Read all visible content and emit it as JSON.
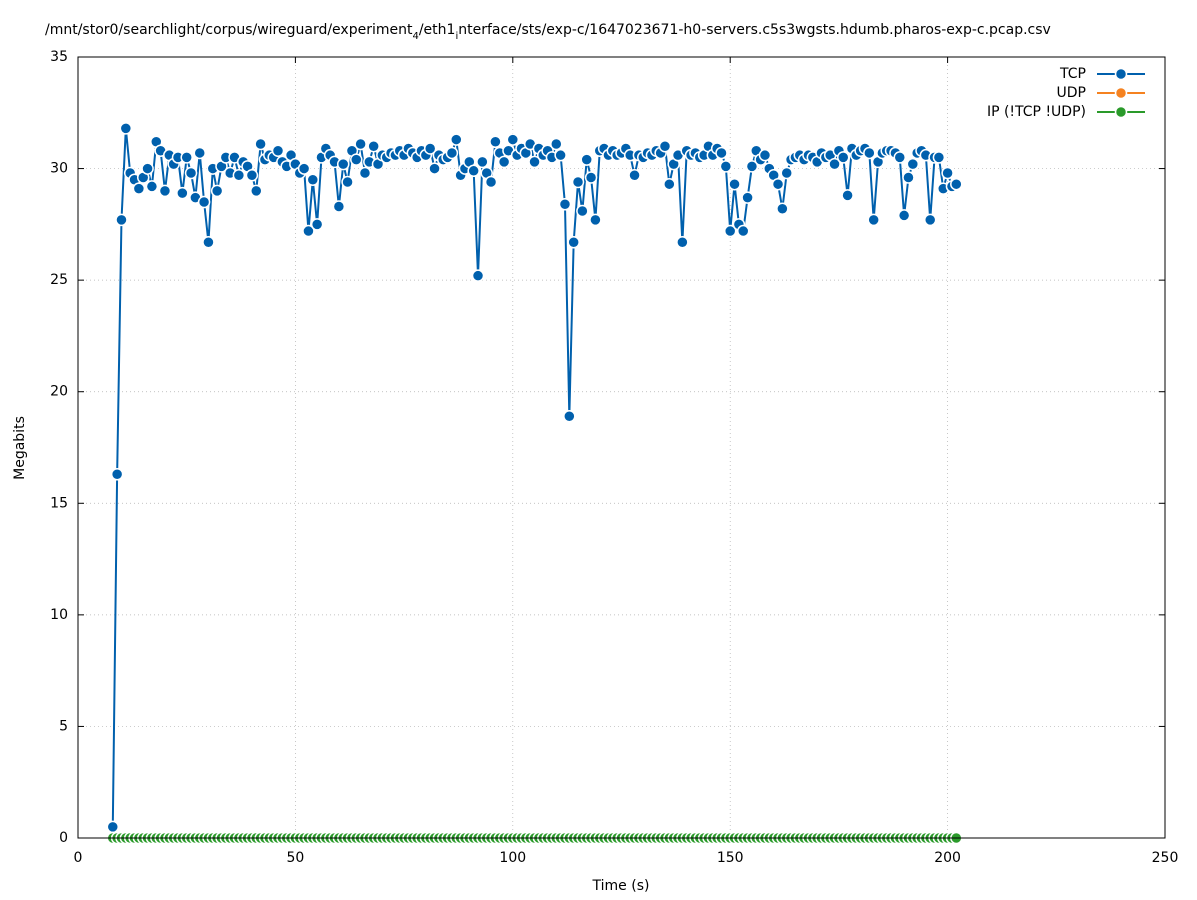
{
  "chart_data": {
    "type": "line",
    "title": [
      "/mnt/stor0/searchlight/corpus/wireguard/experiment",
      "4",
      "/eth1",
      "i",
      "nterface/sts/exp-c/1647023671-h0-servers.c5s3wgsts.hdumb.pharos-exp-c.pcap.csv"
    ],
    "xlabel": "Time (s)",
    "ylabel": "Megabits",
    "xlim": [
      0,
      250
    ],
    "xticks": [
      0,
      50,
      100,
      150,
      200,
      250
    ],
    "ylim": [
      0,
      35
    ],
    "yticks": [
      0,
      5,
      10,
      15,
      20,
      25,
      30,
      35
    ],
    "grid": true,
    "legend": "top-right",
    "x": [
      8,
      9,
      10,
      11,
      12,
      13,
      14,
      15,
      16,
      17,
      18,
      19,
      20,
      21,
      22,
      23,
      24,
      25,
      26,
      27,
      28,
      29,
      30,
      31,
      32,
      33,
      34,
      35,
      36,
      37,
      38,
      39,
      40,
      41,
      42,
      43,
      44,
      45,
      46,
      47,
      48,
      49,
      50,
      51,
      52,
      53,
      54,
      55,
      56,
      57,
      58,
      59,
      60,
      61,
      62,
      63,
      64,
      65,
      66,
      67,
      68,
      69,
      70,
      71,
      72,
      73,
      74,
      75,
      76,
      77,
      78,
      79,
      80,
      81,
      82,
      83,
      84,
      85,
      86,
      87,
      88,
      89,
      90,
      91,
      92,
      93,
      94,
      95,
      96,
      97,
      98,
      99,
      100,
      101,
      102,
      103,
      104,
      105,
      106,
      107,
      108,
      109,
      110,
      111,
      112,
      113,
      114,
      115,
      116,
      117,
      118,
      119,
      120,
      121,
      122,
      123,
      124,
      125,
      126,
      127,
      128,
      129,
      130,
      131,
      132,
      133,
      134,
      135,
      136,
      137,
      138,
      139,
      140,
      141,
      142,
      143,
      144,
      145,
      146,
      147,
      148,
      149,
      150,
      151,
      152,
      153,
      154,
      155,
      156,
      157,
      158,
      159,
      160,
      161,
      162,
      163,
      164,
      165,
      166,
      167,
      168,
      169,
      170,
      171,
      172,
      173,
      174,
      175,
      176,
      177,
      178,
      179,
      180,
      181,
      182,
      183,
      184,
      185,
      186,
      187,
      188,
      189,
      190,
      191,
      192,
      193,
      194,
      195,
      196,
      197,
      198,
      199,
      200,
      201,
      202
    ],
    "series": [
      {
        "name": "TCP",
        "color": "#0060ad",
        "values": [
          0.5,
          16.3,
          27.7,
          31.8,
          29.8,
          29.5,
          29.1,
          29.6,
          30.0,
          29.2,
          31.2,
          30.8,
          29.0,
          30.6,
          30.2,
          30.5,
          28.9,
          30.5,
          29.8,
          28.7,
          30.7,
          28.5,
          26.7,
          30.0,
          29.0,
          30.1,
          30.5,
          29.8,
          30.5,
          29.7,
          30.3,
          30.1,
          29.7,
          29.0,
          31.1,
          30.4,
          30.6,
          30.5,
          30.8,
          30.3,
          30.1,
          30.6,
          30.2,
          29.8,
          30.0,
          27.2,
          29.5,
          27.5,
          30.5,
          30.9,
          30.6,
          30.3,
          28.3,
          30.2,
          29.4,
          30.8,
          30.4,
          31.1,
          29.8,
          30.3,
          31.0,
          30.2,
          30.6,
          30.5,
          30.7,
          30.6,
          30.8,
          30.6,
          30.9,
          30.7,
          30.5,
          30.8,
          30.6,
          30.9,
          30.0,
          30.6,
          30.4,
          30.5,
          30.7,
          31.3,
          29.7,
          30.0,
          30.3,
          29.9,
          25.2,
          30.3,
          29.8,
          29.4,
          31.2,
          30.7,
          30.3,
          30.8,
          31.3,
          30.6,
          30.9,
          30.7,
          31.1,
          30.3,
          30.9,
          30.6,
          30.8,
          30.5,
          31.1,
          30.6,
          28.4,
          18.9,
          26.7,
          29.4,
          28.1,
          30.4,
          29.6,
          27.7,
          30.8,
          30.9,
          30.6,
          30.8,
          30.6,
          30.7,
          30.9,
          30.6,
          29.7,
          30.6,
          30.5,
          30.7,
          30.6,
          30.8,
          30.7,
          31.0,
          29.3,
          30.2,
          30.6,
          26.7,
          30.8,
          30.6,
          30.7,
          30.5,
          30.6,
          31.0,
          30.6,
          30.9,
          30.7,
          30.1,
          27.2,
          29.3,
          27.5,
          27.2,
          28.7,
          30.1,
          30.8,
          30.4,
          30.6,
          30.0,
          29.7,
          29.3,
          28.2,
          29.8,
          30.4,
          30.5,
          30.6,
          30.4,
          30.6,
          30.5,
          30.3,
          30.7,
          30.5,
          30.6,
          30.2,
          30.8,
          30.5,
          28.8,
          30.9,
          30.6,
          30.8,
          30.9,
          30.7,
          27.7,
          30.3,
          30.7,
          30.8,
          30.8,
          30.7,
          30.5,
          27.9,
          29.6,
          30.2,
          30.7,
          30.8,
          30.6,
          27.7,
          30.5,
          30.5,
          29.1,
          29.8,
          29.2,
          29.3
        ]
      },
      {
        "name": "UDP",
        "color": "#f58220",
        "values": [
          0,
          0,
          0,
          0,
          0,
          0,
          0,
          0,
          0,
          0,
          0,
          0,
          0,
          0,
          0,
          0,
          0,
          0,
          0,
          0,
          0,
          0,
          0,
          0,
          0,
          0,
          0,
          0,
          0,
          0,
          0,
          0,
          0,
          0,
          0,
          0,
          0,
          0,
          0,
          0,
          0,
          0,
          0,
          0,
          0,
          0,
          0,
          0,
          0,
          0,
          0,
          0,
          0,
          0,
          0,
          0,
          0,
          0,
          0,
          0,
          0,
          0,
          0,
          0,
          0,
          0,
          0,
          0,
          0,
          0,
          0,
          0,
          0,
          0,
          0,
          0,
          0,
          0,
          0,
          0,
          0,
          0,
          0,
          0,
          0,
          0,
          0,
          0,
          0,
          0,
          0,
          0,
          0,
          0,
          0,
          0,
          0,
          0,
          0,
          0,
          0,
          0,
          0,
          0,
          0,
          0,
          0,
          0,
          0,
          0,
          0,
          0,
          0,
          0,
          0,
          0,
          0,
          0,
          0,
          0,
          0,
          0,
          0,
          0,
          0,
          0,
          0,
          0,
          0,
          0,
          0,
          0,
          0,
          0,
          0,
          0,
          0,
          0,
          0,
          0,
          0,
          0,
          0,
          0,
          0,
          0,
          0,
          0,
          0,
          0,
          0,
          0,
          0,
          0,
          0,
          0,
          0,
          0,
          0,
          0,
          0,
          0,
          0,
          0,
          0,
          0,
          0,
          0,
          0,
          0,
          0,
          0,
          0,
          0,
          0,
          0,
          0,
          0,
          0,
          0,
          0,
          0,
          0,
          0,
          0,
          0,
          0,
          0,
          0,
          0,
          0,
          0,
          0,
          0,
          0
        ]
      },
      {
        "name": "IP (!TCP  !UDP)",
        "color": "#2a9a2a",
        "values": [
          0,
          0,
          0,
          0,
          0,
          0,
          0,
          0,
          0,
          0,
          0,
          0,
          0,
          0,
          0,
          0,
          0,
          0,
          0,
          0,
          0,
          0,
          0,
          0,
          0,
          0,
          0,
          0,
          0,
          0,
          0,
          0,
          0,
          0,
          0,
          0,
          0,
          0,
          0,
          0,
          0,
          0,
          0,
          0,
          0,
          0,
          0,
          0,
          0,
          0,
          0,
          0,
          0,
          0,
          0,
          0,
          0,
          0,
          0,
          0,
          0,
          0,
          0,
          0,
          0,
          0,
          0,
          0,
          0,
          0,
          0,
          0,
          0,
          0,
          0,
          0,
          0,
          0,
          0,
          0,
          0,
          0,
          0,
          0,
          0,
          0,
          0,
          0,
          0,
          0,
          0,
          0,
          0,
          0,
          0,
          0,
          0,
          0,
          0,
          0,
          0,
          0,
          0,
          0,
          0,
          0,
          0,
          0,
          0,
          0,
          0,
          0,
          0,
          0,
          0,
          0,
          0,
          0,
          0,
          0,
          0,
          0,
          0,
          0,
          0,
          0,
          0,
          0,
          0,
          0,
          0,
          0,
          0,
          0,
          0,
          0,
          0,
          0,
          0,
          0,
          0,
          0,
          0,
          0,
          0,
          0,
          0,
          0,
          0,
          0,
          0,
          0,
          0,
          0,
          0,
          0,
          0,
          0,
          0,
          0,
          0,
          0,
          0,
          0,
          0,
          0,
          0,
          0,
          0,
          0,
          0,
          0,
          0,
          0,
          0,
          0,
          0,
          0,
          0,
          0,
          0,
          0,
          0,
          0,
          0,
          0,
          0,
          0,
          0,
          0,
          0,
          0,
          0,
          0,
          0
        ]
      }
    ]
  }
}
